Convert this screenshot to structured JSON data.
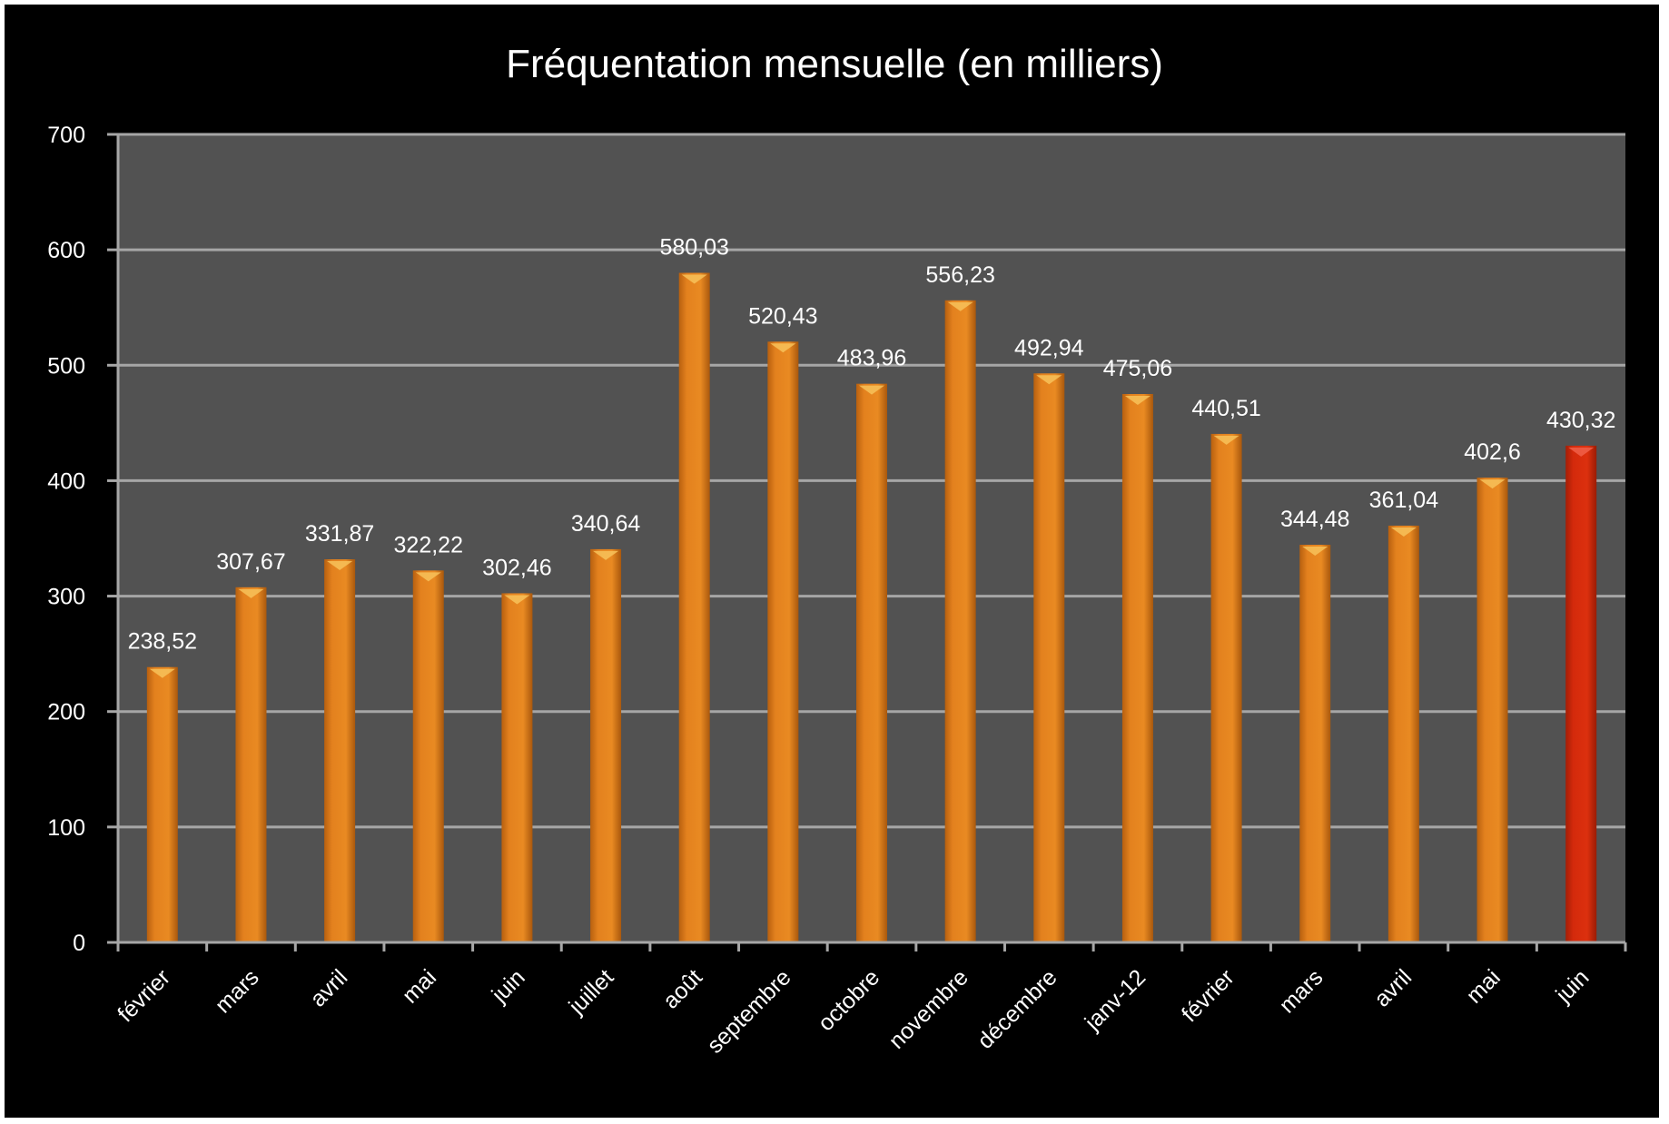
{
  "chart_data": {
    "type": "bar",
    "title": "Fréquentation mensuelle (en milliers)",
    "xlabel": "",
    "ylabel": "",
    "ylim": [
      0,
      700
    ],
    "yticks": [
      "0",
      "100",
      "200",
      "300",
      "400",
      "500",
      "600",
      "700"
    ],
    "grid": true,
    "categories": [
      "février",
      "mars",
      "avril",
      "mai",
      "juin",
      "juillet",
      "août",
      "septembre",
      "octobre",
      "novembre",
      "décembre",
      "janv-12",
      "février",
      "mars",
      "avril",
      "mai",
      "juin"
    ],
    "values": [
      238.52,
      307.67,
      331.87,
      322.22,
      302.46,
      340.64,
      580.03,
      520.43,
      483.96,
      556.23,
      492.94,
      475.06,
      440.51,
      344.48,
      361.04,
      402.6,
      430.32
    ],
    "value_labels": [
      "238,52",
      "307,67",
      "331,87",
      "322,22",
      "302,46",
      "340,64",
      "580,03",
      "520,43",
      "483,96",
      "556,23",
      "492,94",
      "475,06",
      "440,51",
      "344,48",
      "361,04",
      "402,6",
      "430,32"
    ],
    "colors": {
      "background": "#000000",
      "plot_area": "#525252",
      "gridline": "#a6a6a6",
      "bar": "#e3811e",
      "bar_highlight": "#d42a0c",
      "text": "#ffffff"
    },
    "highlighted_index": 16
  }
}
